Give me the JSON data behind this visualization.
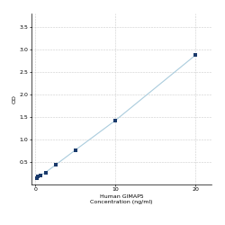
{
  "x": [
    0.156,
    0.313,
    0.625,
    1.25,
    2.5,
    5,
    10,
    20
  ],
  "y": [
    0.148,
    0.172,
    0.202,
    0.268,
    0.434,
    0.768,
    1.426,
    2.876
  ],
  "line_color": "#aaccdd",
  "marker_color": "#1a3a6b",
  "marker_size": 3.5,
  "xlabel_line1": "Human GIMAP5",
  "xlabel_line2": "Concentration (ng/ml)",
  "ylabel": "OD",
  "xlim": [
    -0.5,
    22
  ],
  "ylim": [
    0,
    3.8
  ],
  "yticks": [
    0.5,
    1.0,
    1.5,
    2.0,
    2.5,
    3.0,
    3.5
  ],
  "xticks": [
    0,
    10,
    20
  ],
  "grid_color": "#cccccc",
  "background_color": "#ffffff",
  "label_fontsize": 4.5,
  "tick_fontsize": 4.5,
  "figsize": [
    2.5,
    2.5
  ],
  "dpi": 100
}
